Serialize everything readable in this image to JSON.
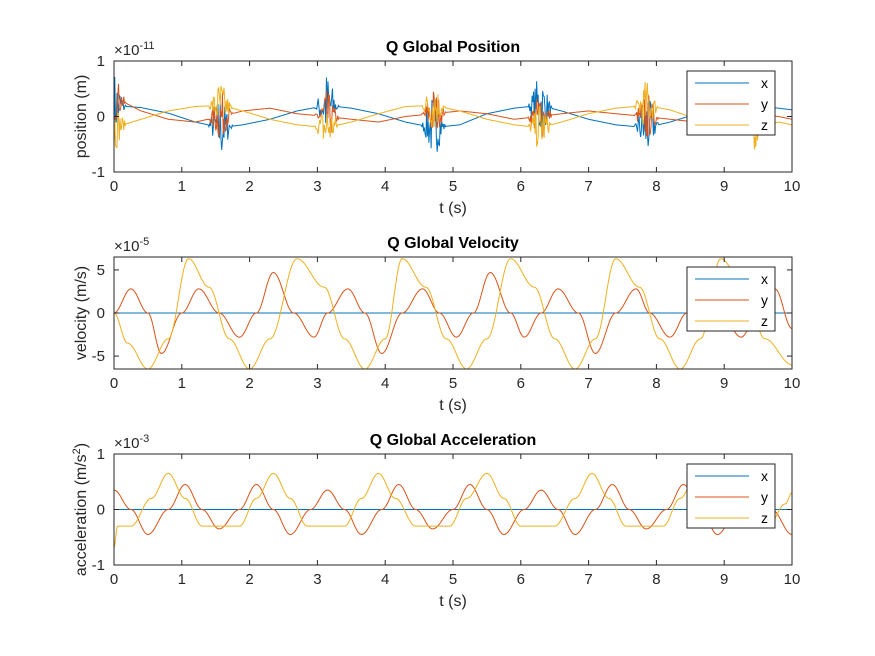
{
  "chart_data": [
    {
      "type": "line",
      "title": "Q Global Position",
      "xlabel": "t (s)",
      "ylabel": "position (m)",
      "exponent_base": "×10",
      "exponent_power": "-11",
      "xlim": [
        0,
        10
      ],
      "ylim": [
        -1,
        1
      ],
      "xticks": [
        "0",
        "1",
        "2",
        "3",
        "4",
        "5",
        "6",
        "7",
        "8",
        "9",
        "10"
      ],
      "yticks": [
        "-1",
        "0",
        "1"
      ],
      "legend": [
        "x",
        "y",
        "z"
      ],
      "legend_position": "top-right",
      "series": [
        {
          "name": "x",
          "color": "#0072BD",
          "x": [
            0,
            0.4,
            0.8,
            1.2,
            1.57,
            1.9,
            2.3,
            2.7,
            3.14,
            3.5,
            3.9,
            4.3,
            4.71,
            5.1,
            5.5,
            5.9,
            6.28,
            6.6,
            7.0,
            7.4,
            7.85,
            8.2,
            8.6,
            9.0,
            9.42,
            9.8,
            10
          ],
          "values": [
            0.2,
            0.16,
            0.06,
            -0.1,
            -0.2,
            -0.15,
            -0.05,
            0.1,
            0.2,
            0.15,
            0.05,
            -0.1,
            -0.2,
            -0.15,
            0.05,
            0.15,
            0.2,
            0.1,
            -0.05,
            -0.15,
            -0.2,
            -0.1,
            0.05,
            0.15,
            0.2,
            0.15,
            0.12
          ],
          "noise": "bursts of amplitude up to 0.7 near t = 0, 1.57, 3.14, 4.71, 6.28, 7.85, 9.42"
        },
        {
          "name": "y",
          "color": "#D95319",
          "x": [
            0,
            0.4,
            0.8,
            1.2,
            1.57,
            1.9,
            2.3,
            2.7,
            3.14,
            3.5,
            3.9,
            4.3,
            4.71,
            5.1,
            5.5,
            5.9,
            6.28,
            6.6,
            7.0,
            7.4,
            7.85,
            8.2,
            8.6,
            9.0,
            9.42,
            9.8,
            10
          ],
          "values": [
            0.35,
            0.1,
            -0.05,
            -0.1,
            0,
            0.1,
            0.15,
            0.05,
            0,
            -0.05,
            -0.1,
            0,
            0.05,
            0.1,
            0.05,
            -0.05,
            0,
            0.05,
            0.1,
            0.05,
            0,
            -0.05,
            -0.1,
            0,
            0.05,
            0,
            -0.05
          ],
          "noise": "bursts of amplitude up to 0.6 near t = 0, 1.57, 3.14, 4.71, 6.28, 7.85, 9.42"
        },
        {
          "name": "z",
          "color": "#EDB120",
          "x": [
            0,
            0.4,
            0.8,
            1.2,
            1.57,
            1.9,
            2.3,
            2.7,
            3.14,
            3.5,
            3.9,
            4.3,
            4.71,
            5.1,
            5.5,
            5.9,
            6.28,
            6.6,
            7.0,
            7.4,
            7.85,
            8.2,
            8.6,
            9.0,
            9.42,
            9.8,
            10
          ],
          "values": [
            -0.2,
            -0.05,
            0.1,
            0.18,
            0.2,
            0.1,
            -0.05,
            -0.15,
            -0.2,
            -0.1,
            0.05,
            0.18,
            0.2,
            0.1,
            -0.05,
            -0.15,
            -0.2,
            -0.1,
            0.05,
            0.15,
            0.2,
            0.12,
            -0.05,
            -0.15,
            -0.2,
            -0.1,
            -0.15
          ],
          "noise": "bursts of amplitude up to 0.6 near t = 0, 1.57, 3.14, 4.71, 6.28, 7.85, 9.42"
        }
      ]
    },
    {
      "type": "line",
      "title": "Q Global Velocity",
      "xlabel": "t (s)",
      "ylabel": "velocity (m/s)",
      "exponent_base": "×10",
      "exponent_power": "-5",
      "xlim": [
        0,
        10
      ],
      "ylim": [
        -6.5,
        6.5
      ],
      "xticks": [
        "0",
        "1",
        "2",
        "3",
        "4",
        "5",
        "6",
        "7",
        "8",
        "9",
        "10"
      ],
      "ytick_values": [
        -5,
        0,
        5
      ],
      "yticks": [
        "-5",
        "0",
        "5"
      ],
      "legend": [
        "x",
        "y",
        "z"
      ],
      "legend_position": "top-right",
      "series": [
        {
          "name": "x",
          "color": "#0072BD",
          "x": [
            0,
            10
          ],
          "values": [
            0,
            0
          ]
        },
        {
          "name": "y",
          "color": "#D95319",
          "x": [
            0,
            0.25,
            0.5,
            0.7,
            1.0,
            1.25,
            1.55,
            1.85,
            2.1,
            2.35,
            2.65,
            2.95,
            3.15,
            3.45,
            3.7,
            3.95,
            4.25,
            4.55,
            4.8,
            5.05,
            5.3,
            5.55,
            5.85,
            6.05,
            6.3,
            6.55,
            6.85,
            7.1,
            7.4,
            7.7,
            7.9,
            8.2,
            8.45,
            8.7,
            8.95,
            9.25,
            9.5,
            9.75,
            10
          ],
          "values": [
            0,
            2.8,
            0,
            -4.7,
            0,
            2.8,
            0,
            -2.8,
            0,
            4.7,
            0,
            -2.8,
            0,
            2.8,
            0,
            -4.7,
            0,
            2.8,
            0,
            -2.8,
            0,
            4.7,
            0,
            -2.8,
            0,
            2.8,
            0,
            -4.7,
            0,
            2.8,
            0,
            -2.8,
            0,
            4.7,
            0,
            -2.8,
            0,
            2.8,
            -1.8
          ]
        },
        {
          "name": "z",
          "color": "#EDB120",
          "x": [
            0,
            0.2,
            0.5,
            0.8,
            1.1,
            1.4,
            1.7,
            2.0,
            2.3,
            2.7,
            3.1,
            3.4,
            3.7,
            4.0,
            4.25,
            4.6,
            4.9,
            5.2,
            5.5,
            5.85,
            6.2,
            6.5,
            6.8,
            7.1,
            7.4,
            7.75,
            8.05,
            8.35,
            8.65,
            8.95,
            9.3,
            9.6,
            10
          ],
          "values": [
            0,
            -3.5,
            -6.5,
            -3,
            6.3,
            3,
            -3,
            -6.5,
            -3,
            6.3,
            3,
            -3,
            -6.5,
            -3,
            6.3,
            3,
            -3,
            -6.5,
            -3,
            6.3,
            3,
            -3,
            -6.5,
            -3,
            6.3,
            3,
            -3,
            -6.5,
            -3,
            6.3,
            3,
            -3,
            -6
          ]
        }
      ]
    },
    {
      "type": "line",
      "title": "Q Global Acceleration",
      "xlabel": "t (s)",
      "ylabel": "acceleration (m/s",
      "ylabel_sup": "2",
      "ylabel_end": ")",
      "exponent_base": "×10",
      "exponent_power": "-3",
      "xlim": [
        0,
        10
      ],
      "ylim": [
        -1,
        1
      ],
      "xticks": [
        "0",
        "1",
        "2",
        "3",
        "4",
        "5",
        "6",
        "7",
        "8",
        "9",
        "10"
      ],
      "yticks": [
        "-1",
        "0",
        "1"
      ],
      "legend": [
        "x",
        "y",
        "z"
      ],
      "legend_position": "top-right",
      "series": [
        {
          "name": "x",
          "color": "#0072BD",
          "x": [
            0,
            10
          ],
          "values": [
            0,
            0
          ]
        },
        {
          "name": "y",
          "color": "#D95319",
          "x": [
            0,
            0.25,
            0.5,
            0.8,
            1.05,
            1.3,
            1.55,
            1.85,
            2.1,
            2.35,
            2.6,
            2.9,
            3.15,
            3.4,
            3.65,
            3.95,
            4.2,
            4.45,
            4.7,
            5.0,
            5.25,
            5.5,
            5.75,
            6.05,
            6.3,
            6.55,
            6.8,
            7.1,
            7.35,
            7.6,
            7.85,
            8.15,
            8.4,
            8.65,
            8.9,
            9.2,
            9.45,
            9.7,
            10
          ],
          "values": [
            0.35,
            0,
            -0.45,
            0,
            0.45,
            0,
            -0.35,
            0,
            0.45,
            0,
            -0.45,
            0,
            0.35,
            0,
            -0.45,
            0,
            0.45,
            0,
            -0.35,
            0,
            0.45,
            0,
            -0.45,
            0,
            0.35,
            0,
            -0.45,
            0,
            0.45,
            0,
            -0.35,
            0,
            0.45,
            0,
            -0.45,
            0,
            0.35,
            0,
            -0.45
          ]
        },
        {
          "name": "z",
          "color": "#EDB120",
          "x": [
            0,
            0.05,
            0.25,
            0.55,
            0.8,
            1.05,
            1.3,
            1.6,
            1.85,
            2.1,
            2.35,
            2.6,
            2.85,
            3.15,
            3.4,
            3.65,
            3.9,
            4.15,
            4.45,
            4.7,
            4.95,
            5.2,
            5.5,
            5.75,
            6.0,
            6.25,
            6.5,
            6.8,
            7.05,
            7.3,
            7.55,
            7.8,
            8.1,
            8.35,
            8.6,
            8.85,
            9.1,
            9.4,
            9.65,
            9.9,
            10
          ],
          "values": [
            -0.7,
            -0.3,
            -0.3,
            0.2,
            0.65,
            0.2,
            -0.3,
            -0.3,
            -0.3,
            0.2,
            0.65,
            0.2,
            -0.3,
            -0.3,
            -0.3,
            0.2,
            0.65,
            0.2,
            -0.3,
            -0.3,
            -0.3,
            0.2,
            0.65,
            0.2,
            -0.3,
            -0.3,
            -0.3,
            0.2,
            0.65,
            0.2,
            -0.3,
            -0.3,
            -0.3,
            0.2,
            0.65,
            0.2,
            -0.3,
            -0.3,
            -0.3,
            0.1,
            0.3
          ]
        }
      ]
    }
  ]
}
